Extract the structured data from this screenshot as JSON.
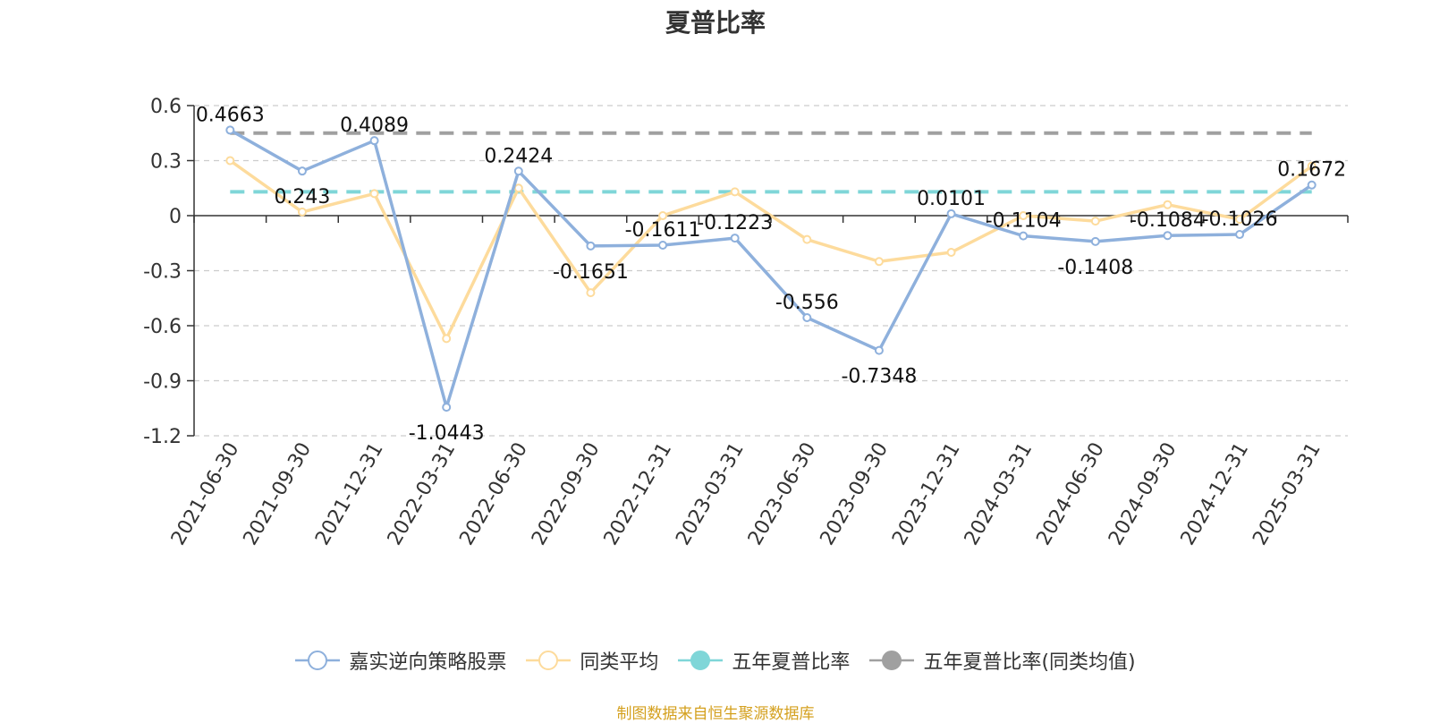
{
  "chart_data": {
    "type": "line",
    "title": "夏普比率",
    "categories": [
      "2021-06-30",
      "2021-09-30",
      "2021-12-31",
      "2022-03-31",
      "2022-06-30",
      "2022-09-30",
      "2022-12-31",
      "2023-03-31",
      "2023-06-30",
      "2023-09-30",
      "2023-12-31",
      "2024-03-31",
      "2024-06-30",
      "2024-09-30",
      "2024-12-31",
      "2025-03-31"
    ],
    "ylim": [
      -1.2,
      0.6
    ],
    "yticks": [
      0.6,
      0.3,
      0,
      -0.3,
      -0.6,
      -0.9,
      -1.2
    ],
    "grid": true,
    "legend_position": "bottom",
    "series": [
      {
        "name": "嘉实逆向策略股票",
        "color": "#8eb0dc",
        "values": [
          0.4663,
          0.243,
          0.4089,
          -1.0443,
          0.2424,
          -0.1651,
          -0.1611,
          -0.1223,
          -0.556,
          -0.7348,
          0.0101,
          -0.1104,
          -0.1408,
          -0.1084,
          -0.1026,
          0.1672
        ],
        "labels": [
          "0.4663",
          "0.243",
          "0.4089",
          "-1.0443",
          "0.2424",
          "-0.1651",
          "-0.1611",
          "-0.1223",
          "-0.556",
          "-0.7348",
          "0.0101",
          "-0.1104",
          "-0.1408",
          "-0.1084",
          "-0.1026",
          "0.1672"
        ]
      },
      {
        "name": "同类平均",
        "color": "#fddb9c",
        "values": [
          0.3,
          0.02,
          0.12,
          -0.67,
          0.15,
          -0.42,
          0.0,
          0.13,
          -0.13,
          -0.25,
          -0.2,
          0.0,
          -0.03,
          0.06,
          -0.02,
          0.27
        ]
      },
      {
        "name": "五年夏普比率",
        "color": "#7fd6d8",
        "style": "dashed",
        "value": 0.13
      },
      {
        "name": "五年夏普比率(同类均值)",
        "color": "#a0a0a0",
        "style": "dashed",
        "value": 0.45
      }
    ]
  },
  "legend": [
    {
      "label": "嘉实逆向策略股票",
      "color": "#8eb0dc",
      "symbol": "hollow-circle"
    },
    {
      "label": "同类平均",
      "color": "#fddb9c",
      "symbol": "hollow-circle"
    },
    {
      "label": "五年夏普比率",
      "color": "#7fd6d8",
      "symbol": "filled-circle"
    },
    {
      "label": "五年夏普比率(同类均值)",
      "color": "#a0a0a0",
      "symbol": "filled-circle"
    }
  ],
  "source": "制图数据来自恒生聚源数据库"
}
